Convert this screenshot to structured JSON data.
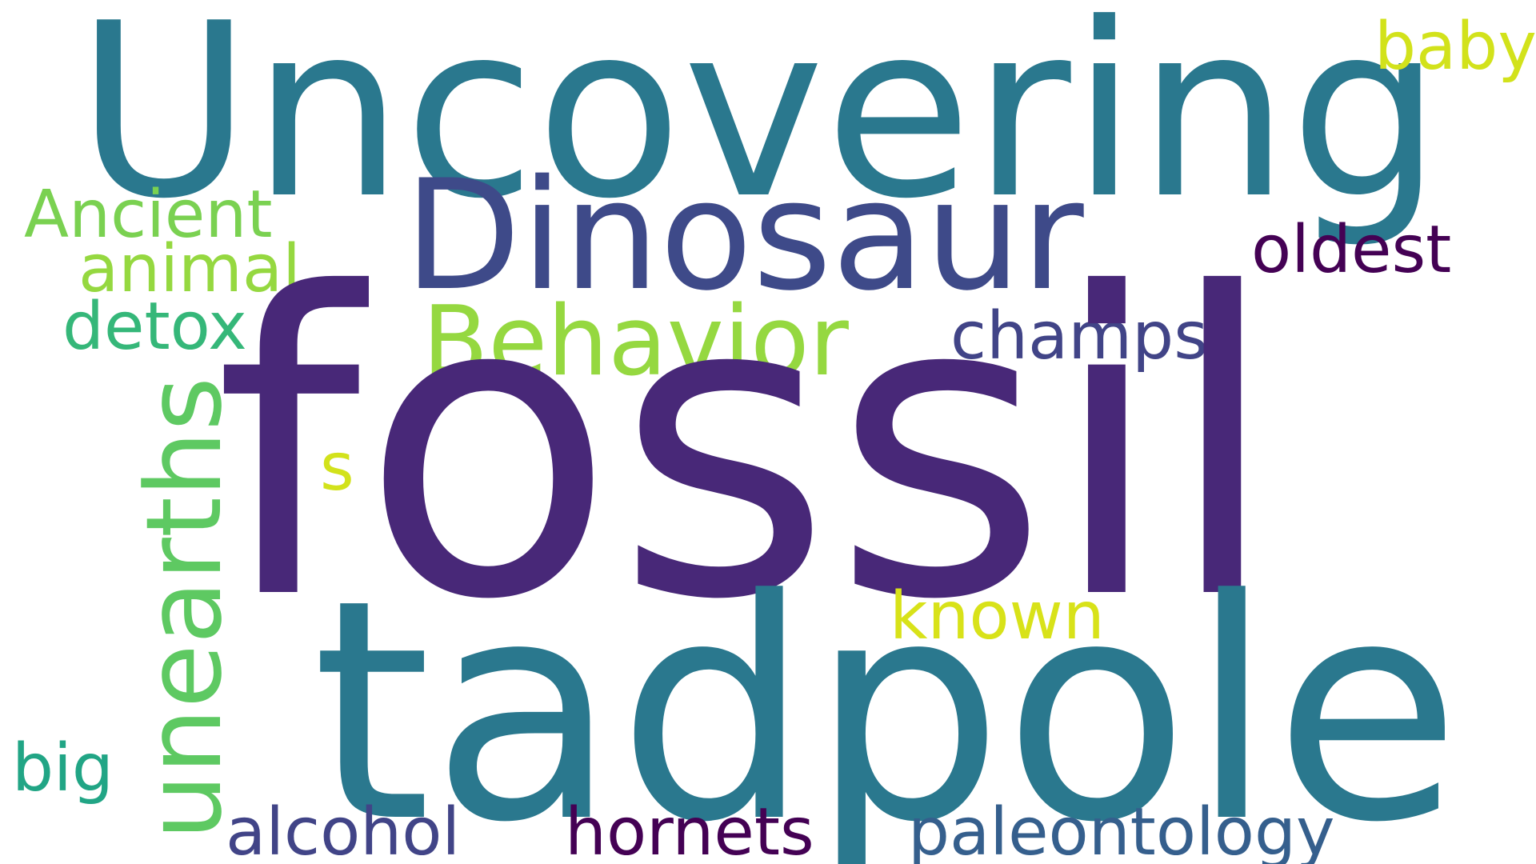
{
  "words": [
    {
      "key": "fossil",
      "text": "fossil",
      "color": "#482878"
    },
    {
      "key": "tadpole",
      "text": "tadpole",
      "color": "#2a788e"
    },
    {
      "key": "uncovering",
      "text": "Uncovering",
      "color": "#2a788e"
    },
    {
      "key": "dinosaur",
      "text": "Dinosaur",
      "color": "#3e4a89"
    },
    {
      "key": "unearths",
      "text": "unearths",
      "color": "#5ec962"
    },
    {
      "key": "behavior",
      "text": "Behavior",
      "color": "#95d840"
    },
    {
      "key": "ancient",
      "text": "Ancient",
      "color": "#7ad151"
    },
    {
      "key": "animal",
      "text": "animal",
      "color": "#95d840"
    },
    {
      "key": "detox",
      "text": "detox",
      "color": "#35b779"
    },
    {
      "key": "champs",
      "text": "champs",
      "color": "#414487"
    },
    {
      "key": "oldest",
      "text": "oldest",
      "color": "#440154"
    },
    {
      "key": "baby",
      "text": "baby",
      "color": "#d2e21b"
    },
    {
      "key": "s",
      "text": "s",
      "color": "#d2e21b"
    },
    {
      "key": "known",
      "text": "known",
      "color": "#d8e219"
    },
    {
      "key": "big",
      "text": "big",
      "color": "#21a585"
    },
    {
      "key": "alcohol",
      "text": "alcohol",
      "color": "#414487"
    },
    {
      "key": "hornets",
      "text": "hornets",
      "color": "#440154"
    },
    {
      "key": "paleontology",
      "text": "paleontology",
      "color": "#355f8d"
    }
  ]
}
